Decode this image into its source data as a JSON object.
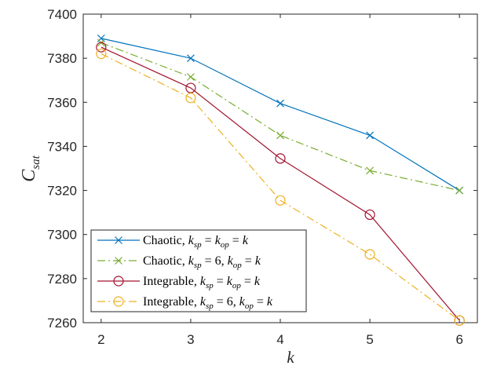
{
  "chart_data": {
    "type": "line",
    "xlabel": "k",
    "ylabel": "C",
    "ylabel_subscript": "sat",
    "xlim": [
      1.8,
      6.2
    ],
    "ylim": [
      7260,
      7400
    ],
    "x_ticks": [
      "2",
      "3",
      "4",
      "5",
      "6"
    ],
    "y_ticks": [
      "7260",
      "7280",
      "7300",
      "7320",
      "7340",
      "7360",
      "7380",
      "7400"
    ],
    "grid": false,
    "legend_position": "bottom-left",
    "x": [
      2,
      3,
      4,
      5,
      6
    ],
    "series": [
      {
        "legend_prefix": "Chaotic, ",
        "legend_math": [
          [
            "k",
            "sp",
            " = "
          ],
          [
            "k",
            "op",
            " = "
          ],
          [
            "k",
            "",
            ""
          ]
        ],
        "values": [
          7389,
          7380,
          7359.5,
          7345,
          7320
        ],
        "color": "#0072BD",
        "dash": "",
        "marker": "x"
      },
      {
        "legend_prefix": "Chaotic, ",
        "legend_math": [
          [
            "k",
            "sp",
            " = 6, "
          ],
          [
            "k",
            "op",
            " = "
          ],
          [
            "k",
            "",
            ""
          ]
        ],
        "values": [
          7387,
          7371.5,
          7345,
          7329,
          7320
        ],
        "color": "#77AC30",
        "dash": "10,4,2,4",
        "marker": "x"
      },
      {
        "legend_prefix": "Integrable, ",
        "legend_math": [
          [
            "k",
            "sp",
            " = "
          ],
          [
            "k",
            "op",
            " = "
          ],
          [
            "k",
            "",
            ""
          ]
        ],
        "values": [
          7385,
          7366.5,
          7334.5,
          7309,
          7261
        ],
        "color": "#A2142F",
        "dash": "",
        "marker": "o"
      },
      {
        "legend_prefix": "Integrable, ",
        "legend_math": [
          [
            "k",
            "sp",
            " = 6, "
          ],
          [
            "k",
            "op",
            " = "
          ],
          [
            "k",
            "",
            ""
          ]
        ],
        "values": [
          7382,
          7362,
          7315.5,
          7291,
          7261
        ],
        "color": "#EDB120",
        "dash": "10,4,2,4",
        "marker": "o"
      }
    ]
  }
}
